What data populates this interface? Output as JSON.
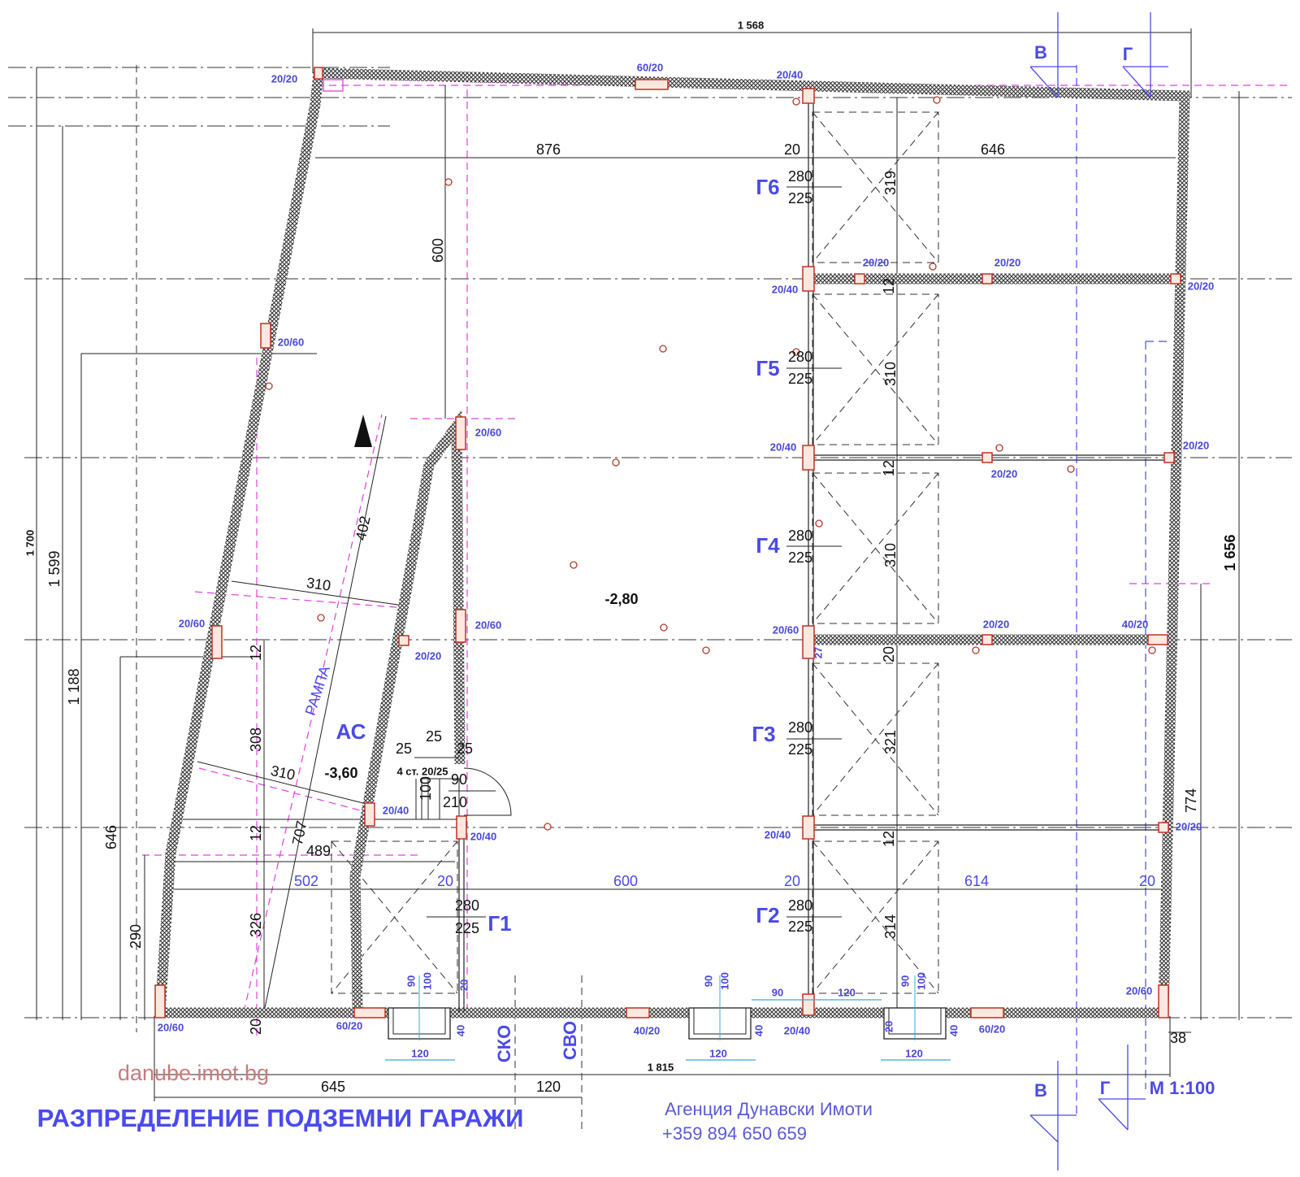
{
  "title": "РАЗПРЕДЕЛЕНИЕ ПОДЗЕМНИ ГАРАЖИ",
  "agency": {
    "name": "Агенция Дунавски Имоти",
    "phone": "+359 894 650 659"
  },
  "watermark": "danube.imot.bg",
  "scale": "М 1:100",
  "sections": [
    "В",
    "Г",
    "В",
    "Г"
  ],
  "garages": [
    "Г6",
    "Г5",
    "Г4",
    "Г3",
    "Г2",
    "Г1"
  ],
  "levels": {
    "main": "-2,80",
    "ramp": "-3,60",
    "ramp_label": "РАМПА",
    "ac": "АС"
  },
  "shafts": [
    "СКО",
    "СВО"
  ],
  "stairs": "4 ст. 20/25",
  "dims": [
    "1 568",
    "876",
    "20",
    "646",
    "600",
    "280",
    "225",
    "319",
    "280",
    "225",
    "310",
    "280",
    "225",
    "310",
    "280",
    "225",
    "321",
    "280",
    "225",
    "314",
    "280",
    "225",
    "402",
    "310",
    "310",
    "707",
    "489",
    "12",
    "308",
    "12",
    "326",
    "290",
    "20",
    "25",
    "25",
    "25",
    "100",
    "90",
    "210",
    "1 700",
    "1 599",
    "1 188",
    "646",
    "1 656",
    "774",
    "38",
    "1 815",
    "645",
    "120",
    "12",
    "12",
    "20",
    "12"
  ],
  "blue_dims": [
    "502",
    "20",
    "600",
    "20",
    "614",
    "20"
  ],
  "columns": [
    "20/20",
    "60/20",
    "20/40",
    "20/20",
    "20/20",
    "20/40",
    "20/20",
    "20/60",
    "20/60",
    "20/40",
    "20/20",
    "20/20",
    "20/60",
    "20/60",
    "20/20",
    "20/60",
    "20/20",
    "40/20",
    "20/40",
    "20/40",
    "20/40",
    "20/20",
    "20/60",
    "20/60",
    "60/20",
    "40/20",
    "20/40",
    "60/20"
  ],
  "window_dims": [
    "90",
    "100",
    "20",
    "40",
    "120",
    "90",
    "100",
    "40",
    "120",
    "90",
    "100",
    "40",
    "120",
    "20",
    "90",
    "120",
    "27"
  ],
  "colors": {
    "accent": "#4a4ae8",
    "wall": "#333333",
    "column": "#c03020",
    "axis": "#e040e0",
    "watermark": "#c87c7c"
  }
}
